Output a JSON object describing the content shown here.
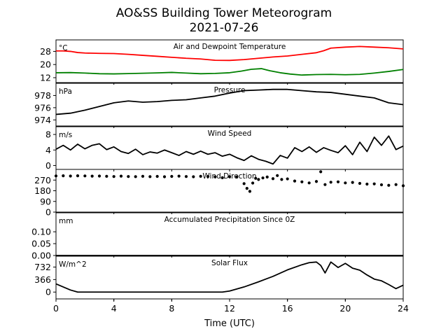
{
  "figure": {
    "title_line1": "AO&SS Building Tower Meteorogram",
    "title_line2": "2021-07-26",
    "xlabel": "Time (UTC)"
  },
  "colors": {
    "temperature": "#ff0000",
    "dewpoint": "#008000",
    "default": "#000000"
  },
  "chart_data": [
    {
      "type": "line",
      "title": "Air and Dewpoint Temperature",
      "unit": "°C",
      "xlim": [
        0,
        24
      ],
      "ylim": [
        9,
        35
      ],
      "yticks": [
        12,
        20,
        28
      ],
      "xticks": [
        0,
        4,
        8,
        12,
        16,
        20,
        24
      ],
      "series": [
        {
          "color_key": "temperature",
          "x": [
            0,
            0.5,
            1,
            1.5,
            2,
            3,
            4,
            5,
            6,
            7,
            8,
            9,
            10,
            11,
            12,
            13,
            14,
            15,
            16,
            17,
            18,
            18.5,
            19,
            20,
            21,
            22,
            23,
            24
          ],
          "y": [
            28.3,
            28.3,
            28,
            27.3,
            27,
            26.8,
            26.7,
            26.2,
            25.6,
            25,
            24.4,
            23.8,
            23.4,
            22.6,
            22.5,
            23,
            23.8,
            24.6,
            25.2,
            26.2,
            27.2,
            28.4,
            30,
            30.6,
            31,
            30.6,
            30.2,
            29.5
          ]
        },
        {
          "color_key": "dewpoint",
          "x": [
            0,
            1,
            2,
            3,
            4,
            5,
            6,
            7,
            8,
            9,
            10,
            11,
            12,
            12.8,
            13.5,
            14.2,
            14.8,
            15.5,
            16.2,
            17,
            18,
            19,
            20,
            21,
            22,
            23,
            24
          ],
          "y": [
            15,
            15.1,
            14.8,
            14.4,
            14.3,
            14.5,
            14.7,
            14.9,
            15.2,
            14.8,
            14.4,
            14.6,
            15,
            16,
            17.1,
            17.5,
            16.2,
            15,
            14.2,
            13.6,
            13.9,
            14,
            13.8,
            14,
            14.8,
            15.8,
            17
          ]
        }
      ]
    },
    {
      "type": "line",
      "title": "Pressure",
      "unit": "hPa",
      "xlim": [
        0,
        24
      ],
      "ylim": [
        973,
        980
      ],
      "yticks": [
        974,
        976,
        978
      ],
      "series": [
        {
          "color_key": "default",
          "x": [
            0,
            1,
            2,
            3,
            4,
            5,
            6,
            7,
            8,
            9,
            10,
            11,
            12,
            13,
            14,
            15,
            16,
            17,
            18,
            19,
            20,
            21,
            22,
            23,
            24
          ],
          "y": [
            974.9,
            975.1,
            975.6,
            976.2,
            976.8,
            977.1,
            976.9,
            977.0,
            977.2,
            977.3,
            977.6,
            977.9,
            978.4,
            978.8,
            978.9,
            979.0,
            979.0,
            978.8,
            978.6,
            978.5,
            978.2,
            977.9,
            977.6,
            976.8,
            976.5
          ]
        }
      ]
    },
    {
      "type": "line",
      "title": "Wind Speed",
      "unit": "m/s",
      "xlim": [
        0,
        24
      ],
      "ylim": [
        -1,
        10
      ],
      "yticks": [
        0,
        4,
        8
      ],
      "series": [
        {
          "color_key": "default",
          "x": [
            0,
            0.5,
            1,
            1.5,
            2,
            2.5,
            3,
            3.5,
            4,
            4.5,
            5,
            5.5,
            6,
            6.5,
            7,
            7.5,
            8,
            8.5,
            9,
            9.5,
            10,
            10.5,
            11,
            11.5,
            12,
            12.5,
            13,
            13.5,
            14,
            14.5,
            15,
            15.5,
            16,
            16.5,
            17,
            17.5,
            18,
            18.5,
            19,
            19.5,
            20,
            20.5,
            21,
            21.5,
            22,
            22.5,
            23,
            23.5,
            24
          ],
          "y": [
            4.2,
            5.2,
            4.0,
            5.5,
            4.3,
            5.2,
            5.6,
            4.1,
            4.8,
            3.6,
            3.1,
            4.2,
            2.8,
            3.5,
            3.2,
            4.0,
            3.3,
            2.6,
            3.6,
            2.9,
            3.7,
            2.9,
            3.3,
            2.4,
            2.9,
            2.0,
            1.3,
            2.5,
            1.6,
            1.1,
            0.4,
            2.6,
            1.9,
            4.6,
            3.6,
            4.8,
            3.4,
            4.6,
            3.9,
            3.3,
            5.1,
            2.8,
            6.0,
            3.6,
            7.3,
            5.2,
            7.6,
            4.1,
            5.0
          ]
        }
      ]
    },
    {
      "type": "scatter",
      "title": "Wind Direction",
      "unit": "",
      "xlim": [
        0,
        24
      ],
      "ylim": [
        0,
        360
      ],
      "yticks": [
        0,
        90,
        180,
        270
      ],
      "series": [
        {
          "color_key": "default",
          "x": [
            0,
            0.5,
            1,
            1.5,
            2,
            2.5,
            3,
            3.5,
            4,
            4.5,
            5,
            5.5,
            6,
            6.5,
            7,
            7.5,
            8,
            8.5,
            9,
            9.5,
            10,
            10.5,
            11,
            11.5,
            12,
            12.5,
            13,
            13.2,
            13.4,
            13.6,
            13.8,
            14,
            14.3,
            14.6,
            15,
            15.3,
            15.6,
            16,
            16.5,
            17,
            17.5,
            18,
            18.3,
            18.6,
            19,
            19.5,
            20,
            20.5,
            21,
            21.5,
            22,
            22.5,
            23,
            23.5,
            24
          ],
          "y": [
            305,
            306,
            304,
            306,
            305,
            303,
            304,
            302,
            300,
            303,
            300,
            299,
            302,
            299,
            301,
            298,
            301,
            303,
            300,
            298,
            302,
            300,
            297,
            290,
            298,
            297,
            240,
            200,
            175,
            245,
            285,
            275,
            288,
            296,
            282,
            308,
            275,
            280,
            262,
            255,
            246,
            258,
            340,
            232,
            252,
            255,
            246,
            250,
            242,
            236,
            238,
            230,
            226,
            232,
            222
          ]
        }
      ]
    },
    {
      "type": "line",
      "title": "Accumulated Precipitation Since 0Z",
      "unit": "mm",
      "xlim": [
        0,
        24
      ],
      "ylim": [
        0,
        0.18
      ],
      "yticks": [
        0.0,
        0.05,
        0.1
      ],
      "ytick_labels": [
        "0.00",
        "0.05",
        "0.10"
      ],
      "series": [
        {
          "color_key": "default",
          "x": [
            0,
            24
          ],
          "y": [
            0,
            0
          ]
        }
      ]
    },
    {
      "type": "line",
      "title": "Solar Flux",
      "unit": "W/m^2",
      "xlim": [
        0,
        24
      ],
      "ylim": [
        -200,
        1050
      ],
      "yticks": [
        0,
        366,
        732
      ],
      "series": [
        {
          "color_key": "default",
          "x": [
            0,
            0.5,
            1,
            1.5,
            2,
            3,
            4,
            5,
            6,
            7,
            8,
            9,
            10,
            11,
            11.5,
            12,
            13,
            14,
            15,
            16,
            17,
            17.5,
            18,
            18.3,
            18.6,
            19,
            19.5,
            20,
            20.5,
            21,
            21.5,
            22,
            22.5,
            23,
            23.5,
            24
          ],
          "y": [
            240,
            150,
            60,
            0,
            0,
            0,
            0,
            0,
            0,
            0,
            0,
            0,
            0,
            0,
            0,
            30,
            150,
            300,
            460,
            650,
            800,
            860,
            880,
            780,
            560,
            880,
            720,
            840,
            700,
            640,
            500,
            380,
            330,
            220,
            100,
            200
          ]
        }
      ]
    }
  ]
}
